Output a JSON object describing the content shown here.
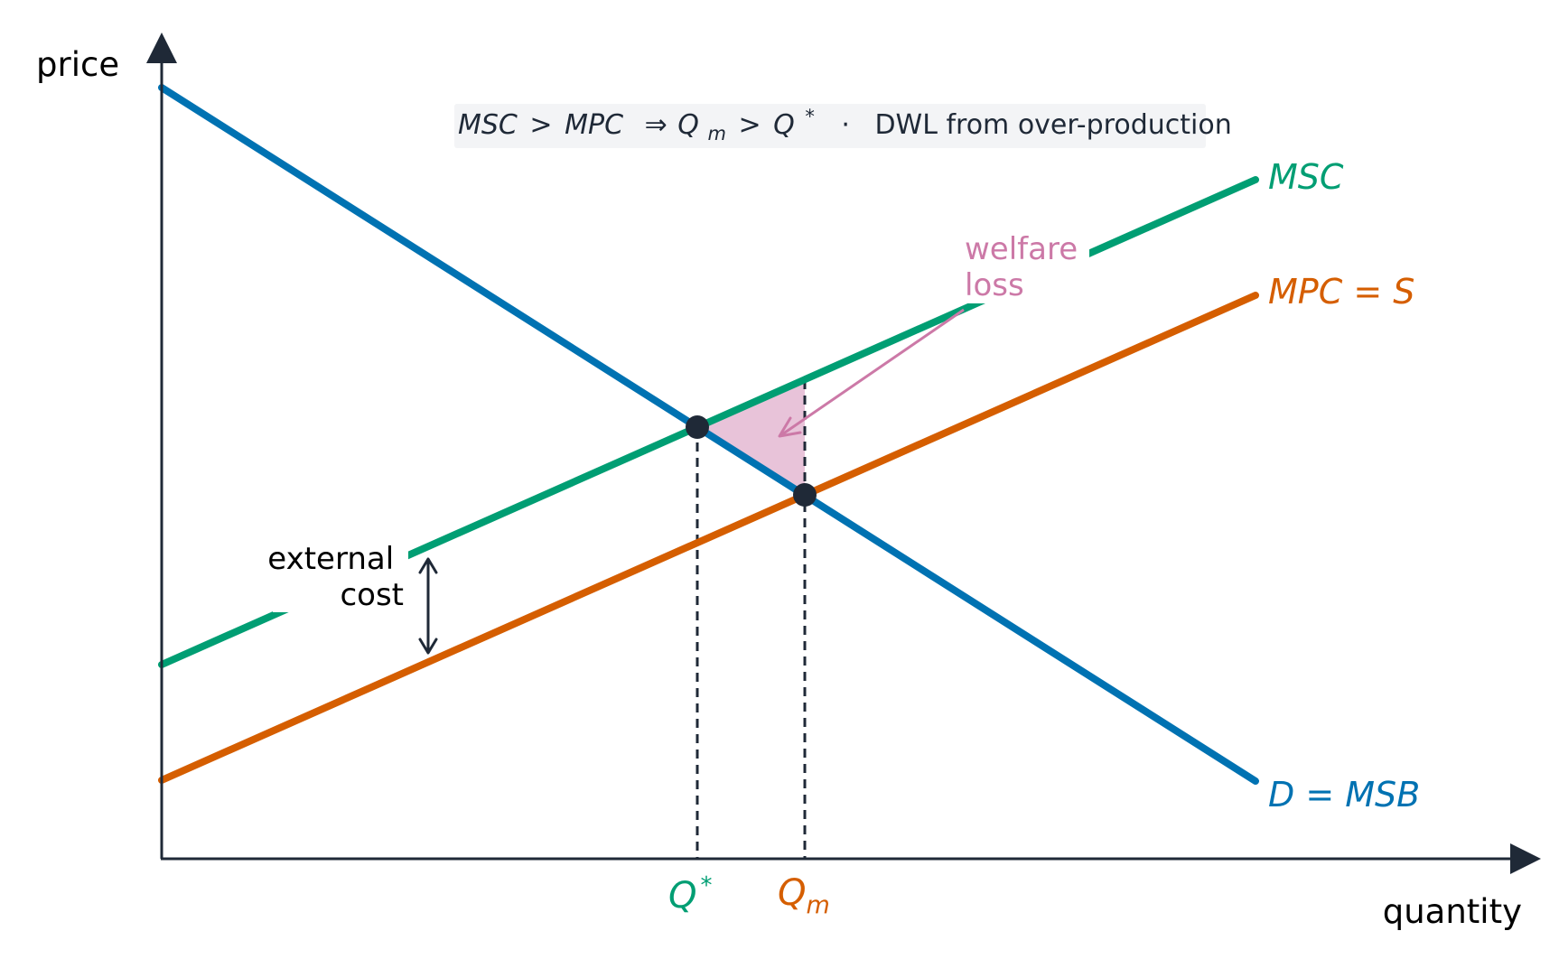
{
  "axes": {
    "y_label": "price",
    "x_label": "quantity"
  },
  "annotation": {
    "formula_parts": [
      "MSC",
      ">",
      "MPC",
      "⇒",
      "Q",
      "m",
      ">",
      "Q",
      "*"
    ],
    "separator": "·",
    "text": "DWL from over-production"
  },
  "curves": {
    "msc": {
      "label": "MSC",
      "color": "#009e73"
    },
    "mpc": {
      "label": "MPC = S",
      "color": "#d55e00"
    },
    "demand": {
      "label": "D = MSB",
      "color": "#0072b2"
    }
  },
  "callouts": {
    "welfare_line1": "welfare",
    "welfare_line2": "loss",
    "welfare_color": "#cc79a7",
    "external_line1": "external",
    "external_line2": "cost"
  },
  "ticks": {
    "q_star_base": "Q",
    "q_star_sup": "*",
    "q_m_base": "Q",
    "q_m_sub": "m"
  },
  "colors": {
    "axis": "#1f2937",
    "dwl_fill": "#e8c3d9",
    "point": "#1f2937"
  }
}
